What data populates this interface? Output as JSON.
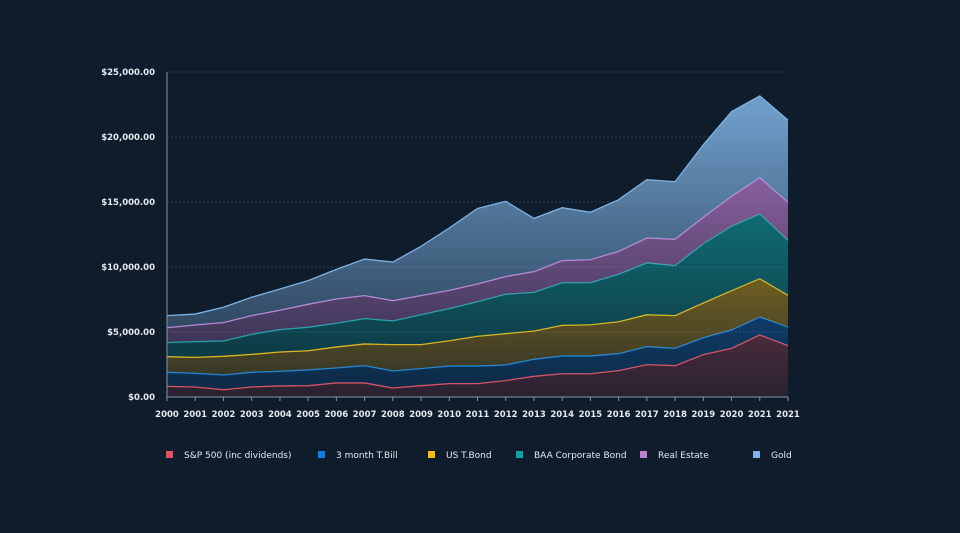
{
  "chart_data": {
    "type": "area",
    "stacked": true,
    "title": "",
    "xlabel": "",
    "ylabel": "",
    "ylim": [
      0,
      25000
    ],
    "y_ticks": [
      "$0.00",
      "$5,000.00",
      "$10,000.00",
      "$15,000.00",
      "$20,000.00",
      "$25,000.00"
    ],
    "y_tick_values": [
      0,
      5000,
      10000,
      15000,
      20000,
      25000
    ],
    "grid": true,
    "legend_placement": "bottom",
    "categories": [
      "2000",
      "2001",
      "2002",
      "2003",
      "2004",
      "2005",
      "2006",
      "2007",
      "2008",
      "2009",
      "2010",
      "2011",
      "2012",
      "2013",
      "2014",
      "2015",
      "2016",
      "2017",
      "2018",
      "2019",
      "2020",
      "2021",
      "2021"
    ],
    "series": [
      {
        "name": "S&P 500 (inc dividends)",
        "color": "#e5505f",
        "values": [
          820,
          770,
          560,
          770,
          850,
          870,
          1080,
          1080,
          690,
          870,
          1030,
          1030,
          1260,
          1590,
          1790,
          1790,
          2030,
          2490,
          2410,
          3260,
          3740,
          4770,
          3950
        ]
      },
      {
        "name": "3 month T.Bill",
        "color": "#0d7fe6",
        "values": [
          1080,
          1050,
          1130,
          1130,
          1120,
          1210,
          1150,
          1330,
          1310,
          1310,
          1350,
          1350,
          1200,
          1310,
          1360,
          1360,
          1300,
          1380,
          1330,
          1300,
          1410,
          1380,
          1430
        ]
      },
      {
        "name": "US T.Bond",
        "color": "#f5b914",
        "values": [
          1200,
          1230,
          1440,
          1380,
          1490,
          1480,
          1620,
          1670,
          2030,
          1850,
          1950,
          2290,
          2410,
          2180,
          2360,
          2410,
          2460,
          2460,
          2520,
          2670,
          3030,
          2950,
          2440
        ]
      },
      {
        "name": "BAA Corporate Bond",
        "color": "#10a5a3",
        "values": [
          1080,
          1210,
          1180,
          1540,
          1720,
          1800,
          1820,
          1950,
          1820,
          2300,
          2470,
          2660,
          3030,
          2970,
          3280,
          3230,
          3650,
          3980,
          3840,
          4560,
          4950,
          4980,
          4230
        ]
      },
      {
        "name": "Real Estate",
        "color": "#c27fd2",
        "values": [
          1150,
          1280,
          1410,
          1440,
          1490,
          1770,
          1870,
          1770,
          1560,
          1470,
          1400,
          1360,
          1360,
          1590,
          1700,
          1770,
          1760,
          1920,
          2030,
          2030,
          2310,
          2790,
          2920
        ]
      },
      {
        "name": "Gold",
        "color": "#7fb2e3",
        "values": [
          930,
          840,
          1180,
          1410,
          1640,
          1820,
          2280,
          2810,
          2970,
          3790,
          4800,
          5810,
          5790,
          4100,
          4070,
          3650,
          3980,
          4490,
          4430,
          5580,
          6510,
          6290,
          6330
        ]
      }
    ]
  }
}
